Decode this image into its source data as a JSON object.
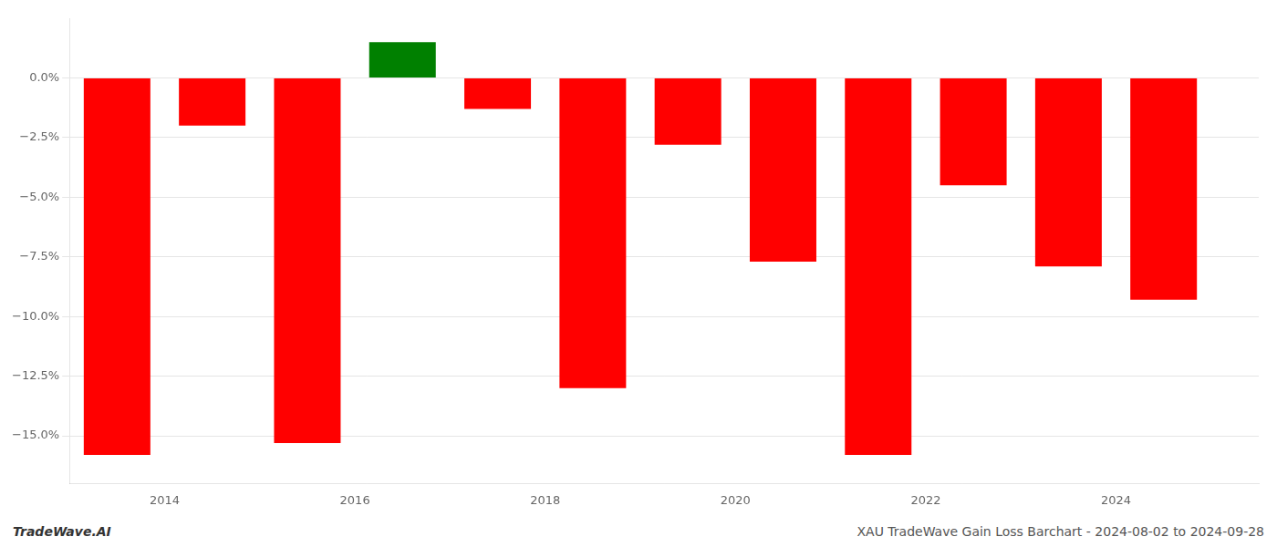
{
  "chart_data": {
    "type": "bar",
    "x": [
      2013.5,
      2014.5,
      2015.5,
      2016.5,
      2017.5,
      2018.5,
      2019.5,
      2020.5,
      2021.5,
      2022.5,
      2023.5,
      2024.5
    ],
    "values": [
      -15.8,
      -2.0,
      -15.3,
      1.5,
      -1.3,
      -13.0,
      -2.8,
      -7.7,
      -15.8,
      -4.5,
      -7.9,
      -9.3
    ],
    "colors": [
      "#ff0000",
      "#ff0000",
      "#ff0000",
      "#008000",
      "#ff0000",
      "#ff0000",
      "#ff0000",
      "#ff0000",
      "#ff0000",
      "#ff0000",
      "#ff0000",
      "#ff0000"
    ],
    "xlim": [
      2013.0,
      2025.5
    ],
    "xticks": [
      2014,
      2016,
      2018,
      2020,
      2022,
      2024
    ],
    "ylim": [
      -17,
      2.5
    ],
    "yticks": [
      {
        "value": 0.0,
        "label": "0.0%"
      },
      {
        "value": -2.5,
        "label": "−2.5%"
      },
      {
        "value": -5.0,
        "label": "−5.0%"
      },
      {
        "value": -7.5,
        "label": "−7.5%"
      },
      {
        "value": -10.0,
        "label": "−10.0%"
      },
      {
        "value": -12.5,
        "label": "−12.5%"
      },
      {
        "value": -15.0,
        "label": "−15.0%"
      }
    ],
    "grid": true,
    "annotations": [
      "TradeWave.AI",
      "XAU TradeWave Gain Loss Barchart - 2024-08-02 to 2024-09-28"
    ]
  }
}
